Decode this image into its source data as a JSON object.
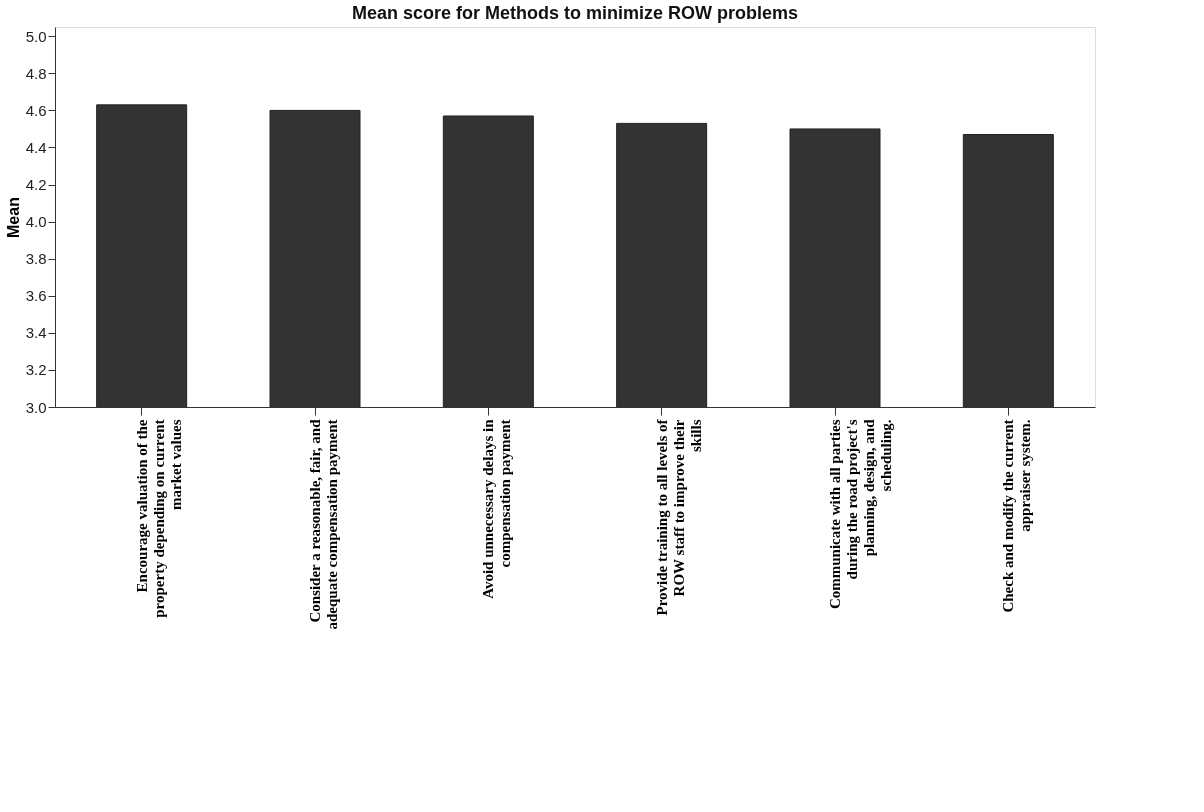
{
  "chart_data": {
    "type": "bar",
    "title": "Mean score for Methods to minimize ROW problems",
    "ylabel": "Mean",
    "categories": [
      "Encourage valuation of the\nproperty depending on current\nmarket values",
      "Consider a reasonable, fair, and\nadequate compensation payment",
      "Avoid unnecessary delays in\ncompensation payment",
      "Provide training to all levels of\nROW staff to improve their\nskills",
      "Communicate with all parties\nduring the road project's\nplanning, design, and\nscheduling.",
      "Check and modify the current\nappraiser system."
    ],
    "values": [
      4.63,
      4.6,
      4.57,
      4.53,
      4.5,
      4.47
    ],
    "color": "#333333",
    "ylim": [
      3.0,
      5.05
    ],
    "yticks": [
      {
        "value": 3.0,
        "label": "3.0"
      },
      {
        "value": 3.2,
        "label": "3.2"
      },
      {
        "value": 3.4,
        "label": "3.4"
      },
      {
        "value": 3.6,
        "label": "3.6"
      },
      {
        "value": 3.8,
        "label": "3.8"
      },
      {
        "value": 4.0,
        "label": "4.0"
      },
      {
        "value": 4.2,
        "label": "4.2"
      },
      {
        "value": 4.4,
        "label": "4.4"
      },
      {
        "value": 4.6,
        "label": "4.6"
      },
      {
        "value": 4.8,
        "label": "4.8"
      },
      {
        "value": 5.0,
        "label": "5.0"
      }
    ],
    "grid": false
  }
}
